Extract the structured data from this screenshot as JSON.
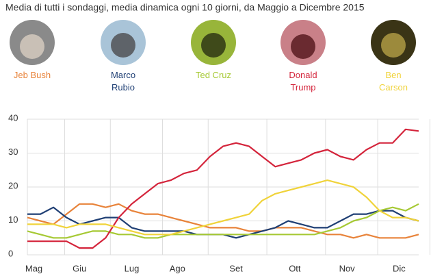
{
  "chart_data": {
    "type": "line",
    "title": "Media di tutti i sondaggi, media dinamica ogni 10 giorni, da Maggio a Dicembre 2015",
    "x": [
      0,
      2,
      4,
      6,
      8,
      10,
      12,
      14,
      16,
      18,
      20,
      22,
      24,
      26,
      28,
      30,
      32,
      34,
      36,
      38,
      40,
      42,
      44,
      46,
      48,
      50,
      52,
      54,
      56,
      58,
      60
    ],
    "xlim": [
      0,
      60
    ],
    "xticks": [
      {
        "value": 1,
        "label": "Mag"
      },
      {
        "value": 8,
        "label": "Giu"
      },
      {
        "value": 16,
        "label": "Lug"
      },
      {
        "value": 23,
        "label": "Ago"
      },
      {
        "value": 32,
        "label": "Set"
      },
      {
        "value": 41,
        "label": "Ott"
      },
      {
        "value": 49,
        "label": "Nov"
      },
      {
        "value": 57,
        "label": "Dic"
      }
    ],
    "ylim": [
      0,
      40
    ],
    "yticks": [
      0,
      10,
      20,
      30,
      40
    ],
    "grid": true,
    "series": [
      {
        "name": "Jeb Bush",
        "color": "#e8833a",
        "values": [
          11,
          10,
          9,
          12,
          15,
          15,
          14,
          15,
          13,
          12,
          12,
          11,
          10,
          9,
          8,
          8,
          8,
          7,
          7,
          8,
          8,
          8,
          7,
          6,
          6,
          5,
          6,
          5,
          5,
          5,
          6
        ]
      },
      {
        "name": "Marco Rubio",
        "color": "#1f3f74",
        "values": [
          12,
          12,
          14,
          11,
          9,
          10,
          11,
          11,
          8,
          7,
          7,
          7,
          7,
          6,
          6,
          6,
          5,
          6,
          7,
          8,
          10,
          9,
          8,
          8,
          10,
          12,
          12,
          13,
          13,
          11,
          10
        ]
      },
      {
        "name": "Ted Cruz",
        "color": "#a6c934",
        "values": [
          7,
          6,
          5,
          5,
          6,
          7,
          7,
          6,
          6,
          5,
          5,
          6,
          6,
          6,
          6,
          6,
          6,
          6,
          6,
          6,
          6,
          6,
          6,
          7,
          8,
          10,
          11,
          13,
          14,
          13,
          15
        ]
      },
      {
        "name": "Donald Trump",
        "color": "#d4243b",
        "values": [
          4,
          4,
          4,
          4,
          2,
          2,
          5,
          11,
          15,
          18,
          21,
          22,
          24,
          25,
          29,
          32,
          33,
          32,
          29,
          26,
          27,
          28,
          30,
          31,
          29,
          28,
          31,
          33,
          33,
          37,
          36.5
        ]
      },
      {
        "name": "Ben Carson",
        "color": "#f0d33a",
        "values": [
          9,
          9,
          9,
          8,
          9,
          9,
          9,
          8,
          7,
          6,
          6,
          6,
          7,
          8,
          9,
          10,
          11,
          12,
          16,
          18,
          19,
          20,
          21,
          22,
          21,
          20,
          17,
          13,
          11,
          11,
          10
        ]
      }
    ]
  }
}
